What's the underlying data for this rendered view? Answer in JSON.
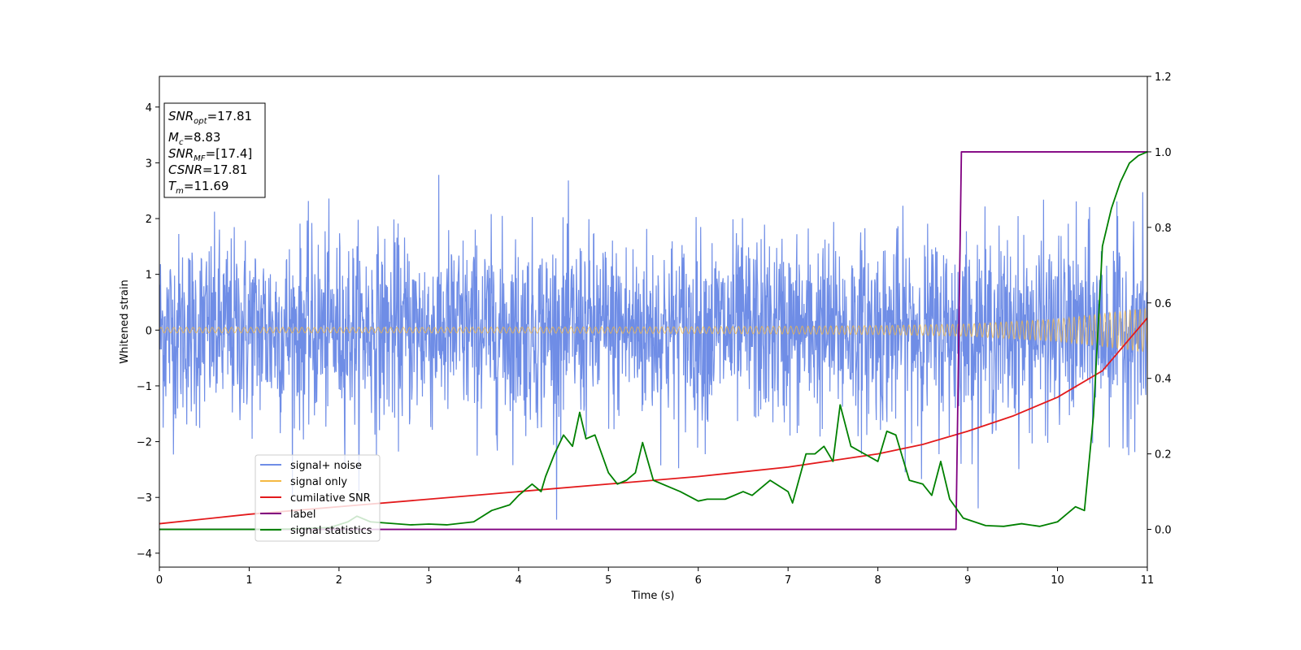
{
  "chart_data": {
    "type": "line",
    "xlabel": "Time (s)",
    "ylabel": "Whitened strain",
    "xlim": [
      0,
      11
    ],
    "ylim": [
      -4.25,
      4.55
    ],
    "y2lim": [
      -0.1,
      1.2
    ],
    "x_ticks": [
      "0",
      "1",
      "2",
      "3",
      "4",
      "5",
      "6",
      "7",
      "8",
      "9",
      "10",
      "11"
    ],
    "y_ticks": [
      "4",
      "3",
      "2",
      "1",
      "0",
      "−1",
      "−2",
      "−3",
      "−4"
    ],
    "y2_ticks": [
      "1.2",
      "1.0",
      "0.8",
      "0.6",
      "0.4",
      "0.2",
      "0.0"
    ],
    "y_tick_values": [
      4,
      3,
      2,
      1,
      0,
      -1,
      -2,
      -3,
      -4
    ],
    "y2_tick_values": [
      1.2,
      1.0,
      0.8,
      0.6,
      0.4,
      0.2,
      0.0
    ],
    "legend_position": "lower-left",
    "grid": false,
    "series": [
      {
        "name": "signal+ noise",
        "color": "#6f8de6",
        "axis": "left",
        "kind": "noise",
        "noise_sigma": 0.85,
        "noise_max": 2.95
      },
      {
        "name": "signal only",
        "color": "#f5b942",
        "axis": "left",
        "kind": "chirp",
        "envelope": [
          [
            0,
            0.05
          ],
          [
            3,
            0.05
          ],
          [
            6,
            0.06
          ],
          [
            8,
            0.08
          ],
          [
            9,
            0.11
          ],
          [
            10,
            0.2
          ],
          [
            11,
            0.4
          ]
        ]
      },
      {
        "name": "cumilative SNR",
        "color": "#e31a1c",
        "axis": "right",
        "points": [
          [
            0,
            0.015
          ],
          [
            1,
            0.04
          ],
          [
            2,
            0.06
          ],
          [
            3,
            0.08
          ],
          [
            4,
            0.1
          ],
          [
            5,
            0.12
          ],
          [
            6,
            0.14
          ],
          [
            7,
            0.165
          ],
          [
            8,
            0.2
          ],
          [
            8.5,
            0.225
          ],
          [
            9,
            0.26
          ],
          [
            9.5,
            0.3
          ],
          [
            10,
            0.35
          ],
          [
            10.5,
            0.42
          ],
          [
            11,
            0.56
          ]
        ]
      },
      {
        "name": "label",
        "color": "#800080",
        "axis": "right",
        "points": [
          [
            0,
            0
          ],
          [
            8.87,
            0
          ],
          [
            8.93,
            1.0
          ],
          [
            11,
            1.0
          ]
        ]
      },
      {
        "name": "signal statistics",
        "color": "#008000",
        "axis": "right",
        "points": [
          [
            0,
            0
          ],
          [
            1,
            0
          ],
          [
            1.5,
            0.001
          ],
          [
            1.9,
            0.005
          ],
          [
            2.1,
            0.02
          ],
          [
            2.2,
            0.035
          ],
          [
            2.35,
            0.02
          ],
          [
            2.8,
            0.012
          ],
          [
            3.0,
            0.014
          ],
          [
            3.2,
            0.012
          ],
          [
            3.5,
            0.02
          ],
          [
            3.7,
            0.05
          ],
          [
            3.9,
            0.065
          ],
          [
            4.0,
            0.09
          ],
          [
            4.15,
            0.12
          ],
          [
            4.25,
            0.1
          ],
          [
            4.3,
            0.14
          ],
          [
            4.4,
            0.2
          ],
          [
            4.5,
            0.25
          ],
          [
            4.6,
            0.22
          ],
          [
            4.68,
            0.31
          ],
          [
            4.75,
            0.24
          ],
          [
            4.85,
            0.25
          ],
          [
            5.0,
            0.15
          ],
          [
            5.1,
            0.12
          ],
          [
            5.2,
            0.13
          ],
          [
            5.3,
            0.15
          ],
          [
            5.38,
            0.23
          ],
          [
            5.5,
            0.13
          ],
          [
            5.7,
            0.11
          ],
          [
            5.8,
            0.1
          ],
          [
            6.0,
            0.075
          ],
          [
            6.1,
            0.08
          ],
          [
            6.3,
            0.08
          ],
          [
            6.5,
            0.1
          ],
          [
            6.6,
            0.09
          ],
          [
            6.8,
            0.13
          ],
          [
            7.0,
            0.1
          ],
          [
            7.05,
            0.07
          ],
          [
            7.2,
            0.2
          ],
          [
            7.3,
            0.2
          ],
          [
            7.4,
            0.22
          ],
          [
            7.5,
            0.18
          ],
          [
            7.58,
            0.33
          ],
          [
            7.7,
            0.22
          ],
          [
            7.85,
            0.2
          ],
          [
            8.0,
            0.18
          ],
          [
            8.1,
            0.26
          ],
          [
            8.2,
            0.25
          ],
          [
            8.35,
            0.13
          ],
          [
            8.5,
            0.12
          ],
          [
            8.6,
            0.09
          ],
          [
            8.7,
            0.18
          ],
          [
            8.8,
            0.08
          ],
          [
            8.95,
            0.03
          ],
          [
            9.2,
            0.01
          ],
          [
            9.4,
            0.008
          ],
          [
            9.6,
            0.015
          ],
          [
            9.8,
            0.008
          ],
          [
            10.0,
            0.02
          ],
          [
            10.1,
            0.04
          ],
          [
            10.2,
            0.06
          ],
          [
            10.3,
            0.05
          ],
          [
            10.4,
            0.3
          ],
          [
            10.5,
            0.75
          ],
          [
            10.6,
            0.85
          ],
          [
            10.7,
            0.92
          ],
          [
            10.8,
            0.97
          ],
          [
            10.9,
            0.99
          ],
          [
            11.0,
            1.0
          ]
        ]
      }
    ]
  },
  "info_box": {
    "snr_opt_base": "SNR",
    "snr_opt_sub": "opt",
    "snr_opt_val": "=17.81",
    "mc_base": "M",
    "mc_sub": "c",
    "mc_val": "=8.83",
    "snr_mf_base": "SNR",
    "snr_mf_sub": "MF",
    "snr_mf_val": "=[17.4]",
    "csnr_base": "CSNR",
    "csnr_val": "=17.81",
    "tm_base": "T",
    "tm_sub": "m",
    "tm_val": "=11.69"
  }
}
